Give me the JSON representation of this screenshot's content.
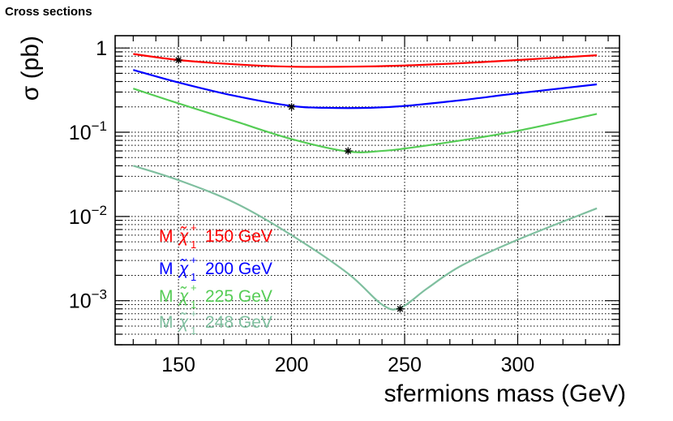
{
  "chart_data": {
    "type": "line",
    "title": "Cross sections",
    "xlabel": "sfermions mass (GeV)",
    "ylabel": "σ (pb)",
    "xlim": [
      122,
      345
    ],
    "ylim": [
      0.0003,
      1.4
    ],
    "yscale": "log",
    "grid": true,
    "x_ticks": [
      150,
      200,
      250,
      300
    ],
    "y_ticks": [
      {
        "value": 1,
        "label": "1",
        "exp": ""
      },
      {
        "value": 0.1,
        "label": "10",
        "exp": "−1"
      },
      {
        "value": 0.01,
        "label": "10",
        "exp": "−2"
      },
      {
        "value": 0.001,
        "label": "10",
        "exp": "−3"
      }
    ],
    "series": [
      {
        "name": "M χ̃₁⁺ 150 GeV",
        "legend_prefix": "M",
        "legend_suffix": "150 GeV",
        "color": "#ff0000",
        "x": [
          130,
          150,
          175,
          200,
          225,
          250,
          275,
          300,
          335
        ],
        "y": [
          0.85,
          0.72,
          0.64,
          0.6,
          0.6,
          0.62,
          0.66,
          0.72,
          0.82
        ],
        "marker": {
          "x": 150,
          "y": 0.72
        }
      },
      {
        "name": "M χ̃₁⁺ 200 GeV",
        "legend_prefix": "M",
        "legend_suffix": "200 GeV",
        "color": "#0000ff",
        "x": [
          130,
          150,
          175,
          200,
          215,
          235,
          250,
          275,
          300,
          335
        ],
        "y": [
          0.55,
          0.39,
          0.27,
          0.205,
          0.195,
          0.195,
          0.205,
          0.24,
          0.29,
          0.37
        ],
        "marker": {
          "x": 200,
          "y": 0.2
        }
      },
      {
        "name": "M χ̃₁⁺ 225 GeV",
        "legend_prefix": "M",
        "legend_suffix": "225 GeV",
        "color": "#55cc55",
        "x": [
          130,
          150,
          175,
          200,
          225,
          240,
          250,
          275,
          300,
          335
        ],
        "y": [
          0.33,
          0.22,
          0.135,
          0.083,
          0.059,
          0.06,
          0.064,
          0.08,
          0.104,
          0.165
        ],
        "marker": {
          "x": 225,
          "y": 0.06
        }
      },
      {
        "name": "M χ̃₁⁺ 248 GeV",
        "legend_prefix": "M",
        "legend_suffix": "248 GeV",
        "color": "#7fbf9f",
        "x": [
          130,
          150,
          175,
          200,
          225,
          240,
          248,
          260,
          275,
          300,
          335
        ],
        "y": [
          0.04,
          0.027,
          0.0145,
          0.006,
          0.0021,
          0.0009,
          0.00082,
          0.0014,
          0.0026,
          0.0053,
          0.0125
        ],
        "marker": {
          "x": 248,
          "y": 0.0008
        }
      }
    ]
  }
}
